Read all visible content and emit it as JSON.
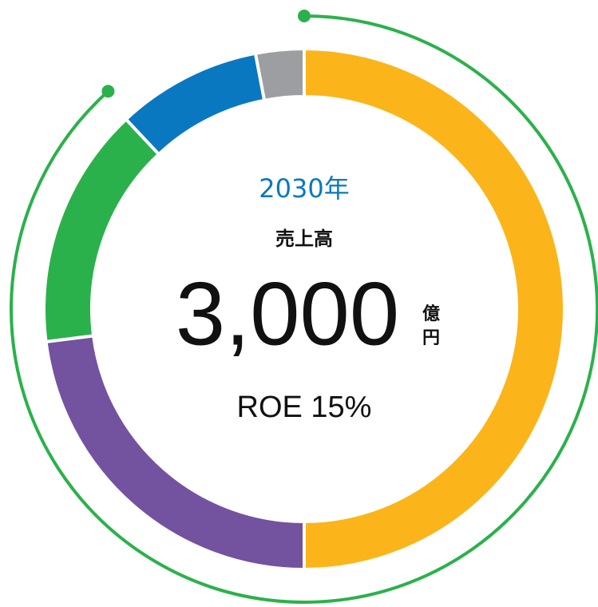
{
  "chart_data": {
    "type": "donut",
    "values": [
      50,
      23,
      15,
      9,
      3
    ],
    "colors": [
      "#fbb51a",
      "#7352a0",
      "#2bb14b",
      "#0a78c0",
      "#9d9ea1"
    ],
    "year": "2030年",
    "metric": "売上高",
    "total": "3,000",
    "unit_top": "億",
    "unit_bottom": "円",
    "roe": "ROE 15%"
  }
}
